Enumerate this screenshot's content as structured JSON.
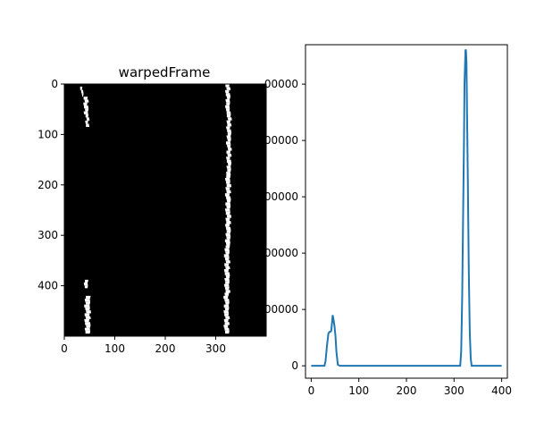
{
  "colors": {
    "background": "#ffffff",
    "image_background": "#000000",
    "lane_pixels": "#ffffff",
    "line_series": "#1f77b4",
    "axes": "#000000"
  },
  "chart_data": [
    {
      "type": "image",
      "title": "warpedFrame",
      "description_of_content": "binary bird's-eye lane mask: two white lane-line strips on black",
      "xlim": [
        0,
        400
      ],
      "ylim": [
        500,
        0
      ],
      "xticks": [
        0,
        100,
        200,
        300
      ],
      "yticks": [
        0,
        100,
        200,
        300,
        400
      ],
      "xtick_labels": [
        "0",
        "100",
        "200",
        "300"
      ],
      "ytick_labels": [
        "0",
        "100",
        "200",
        "300",
        "400"
      ],
      "lane_segments": [
        {
          "x": [
            [
              33,
              37
            ],
            [
              39,
              47
            ],
            [
              42,
              48
            ]
          ],
          "y": [
            [
              5,
              25
            ],
            [
              25,
              60
            ],
            [
              60,
              85
            ]
          ]
        },
        {
          "x": [
            [
              40,
              47
            ],
            [
              41,
              51
            ]
          ],
          "y": [
            [
              388,
              405
            ],
            [
              420,
              495
            ]
          ]
        },
        {
          "x": [
            [
              320,
              328
            ],
            [
              322,
              330
            ],
            [
              320,
              329
            ],
            [
              318,
              327
            ],
            [
              317,
              326
            ]
          ],
          "y": [
            [
              0,
              60
            ],
            [
              60,
              180
            ],
            [
              180,
              320
            ],
            [
              320,
              420
            ],
            [
              420,
              495
            ]
          ]
        }
      ]
    },
    {
      "type": "line",
      "title": "",
      "xlabel": "",
      "ylabel": "",
      "xlim": [
        -12,
        412
      ],
      "ylim": [
        -22000,
        570000
      ],
      "xticks": [
        0,
        100,
        200,
        300,
        400
      ],
      "yticks": [
        0,
        100000,
        200000,
        300000,
        400000,
        500000
      ],
      "xtick_labels": [
        "0",
        "100",
        "200",
        "300",
        "400"
      ],
      "ytick_labels_visible": [
        "0",
        "00000",
        "00000",
        "00000",
        "00000",
        "00000"
      ],
      "series": [
        {
          "x": [
            0,
            10,
            20,
            28,
            30,
            33,
            36,
            38,
            40,
            42,
            44,
            45,
            47,
            49,
            51,
            53,
            56,
            60,
            100,
            200,
            300,
            313,
            315,
            317,
            319,
            321,
            322,
            324,
            325,
            326,
            327,
            329,
            331,
            333,
            335,
            337,
            340,
            400
          ],
          "y": [
            0,
            0,
            0,
            0,
            8000,
            35000,
            57000,
            60000,
            60000,
            62000,
            78000,
            90000,
            82000,
            70000,
            52000,
            25000,
            2000,
            0,
            0,
            0,
            0,
            0,
            25000,
            120000,
            260000,
            410000,
            500000,
            560000,
            560000,
            540000,
            470000,
            320000,
            170000,
            60000,
            12000,
            0,
            0,
            0
          ]
        }
      ]
    }
  ]
}
